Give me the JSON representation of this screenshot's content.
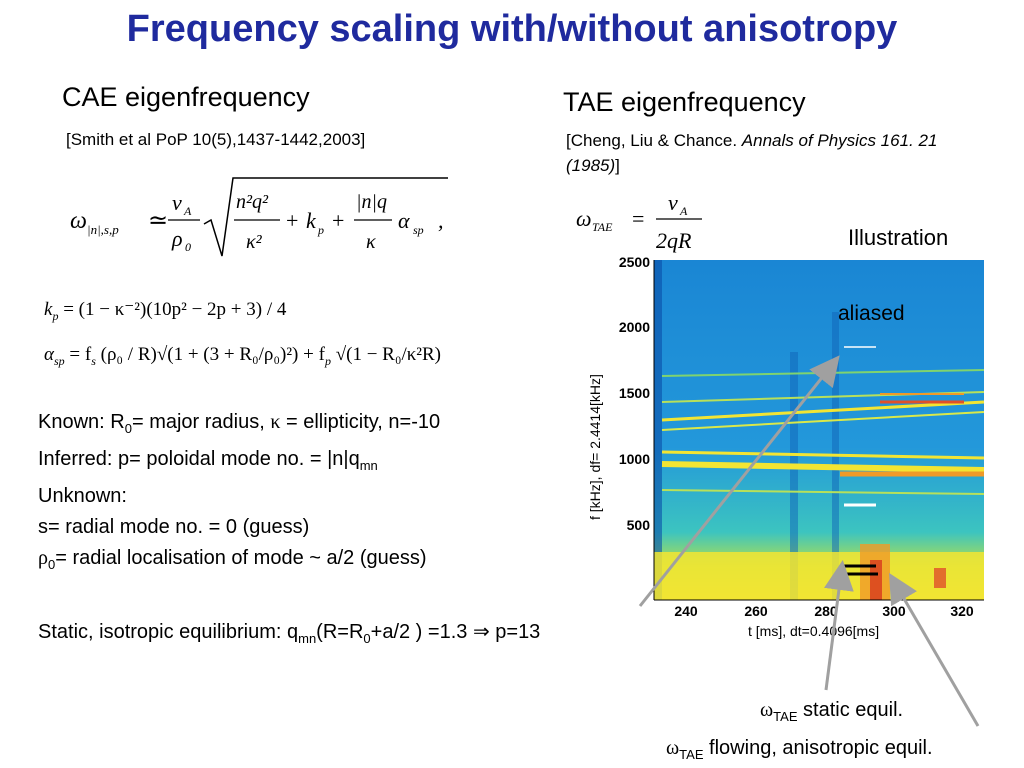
{
  "title": "Frequency scaling with/without anisotropy",
  "cae": {
    "heading": "CAE eigenfrequency",
    "reference": "[Smith et al PoP 10(5),1437-1442,2003]",
    "eq_omega_lhs": "ω",
    "eq_omega_sub": "|n|,s,p",
    "eq_va": "v",
    "eq_va_sub": "A",
    "eq_rho0": "ρ",
    "eq_rho0_sub": "0",
    "eq_kp": "k",
    "eq_kp_sub": "p",
    "eq_alpha": "α",
    "eq_alpha_sub": "sp",
    "kp_formula": "= (1 − κ⁻²)(10p² − 2p + 3) / 4",
    "alpha_formula_a": "= f",
    "alpha_formula_b": "(ρ₀ / R)√(1 + (3 + R₀/ρ₀)²) + f",
    "alpha_formula_c": "√(1 − R₀/κ²R)"
  },
  "tae": {
    "heading": "TAE eigenfrequency",
    "reference_a": "[Cheng, Liu & Chance. ",
    "reference_italic": "Annals of Physics 161. 21 (1985)",
    "reference_b": "]",
    "eq_lhs": "ω",
    "eq_lhs_sub": "TAE",
    "eq_num": "v",
    "eq_num_sub": "A",
    "eq_den": "2qR"
  },
  "notes": {
    "known_a": "Known: R",
    "known_sub": "0",
    "known_b": "= major radius, ",
    "known_kappa": "κ",
    "known_c": " = ellipticity, n=-10",
    "inferred_a": "Inferred:  p= poloidal mode no. = |n|q",
    "inferred_sub": "mn",
    "unknown": "Unknown:",
    "s_line": "s= radial mode no. = 0 (guess)",
    "rho_sym": "ρ",
    "rho_sub": "0",
    "rho_line": "= radial localisation of mode ~ a/2 (guess)",
    "static_a": "Static, isotropic equilibrium: q",
    "static_sub1": "mn",
    "static_b": "(R=R",
    "static_sub2": "0",
    "static_c": "+a/2 ) =1.3 ",
    "static_arrow": "⇒",
    "static_d": " p=13"
  },
  "spectrogram": {
    "illustration_label": "Illustration",
    "aliased_label": "aliased",
    "y_axis_label": "f [kHz], df= 2.4414[kHz]",
    "x_axis_label": "t [ms], dt=0.4096[ms]",
    "y_ticks": [
      "2500",
      "2000",
      "1500",
      "1000",
      "500"
    ],
    "x_ticks": [
      "240",
      "260",
      "280",
      "300",
      "320"
    ]
  },
  "legend": {
    "omega": "ω",
    "sub": "TAE",
    "static_label": " static equil.",
    "flowing_label": " flowing, anisotropic equil."
  },
  "colors": {
    "title": "#1f2a9e",
    "spec_bg": "#1e8fd6",
    "band_yellow": "#f2e533",
    "band_orange": "#f09a28"
  }
}
